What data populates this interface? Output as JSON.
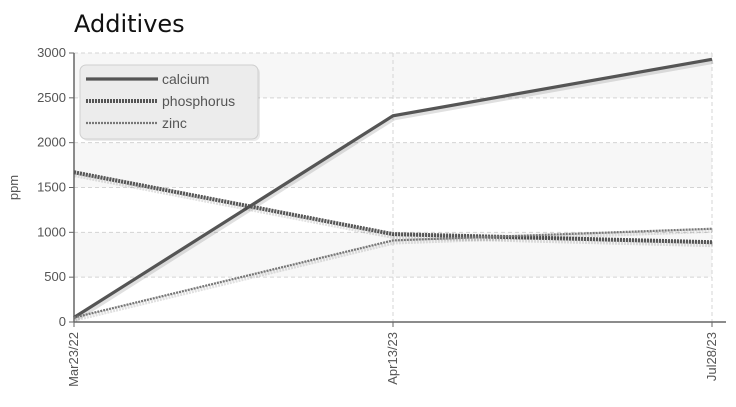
{
  "chart_data": {
    "type": "line",
    "title": "Additives",
    "xlabel": "",
    "ylabel": "ppm",
    "x": [
      "Mar23/22",
      "Apr13/23",
      "Jul28/23"
    ],
    "ylim": [
      0,
      3000
    ],
    "yticks": [
      0,
      500,
      1000,
      1500,
      2000,
      2500,
      3000
    ],
    "grid": true,
    "legend_position": "top-left",
    "series": [
      {
        "name": "calcium",
        "values": [
          50,
          2300,
          2930
        ],
        "color": "#555555",
        "style": "solid"
      },
      {
        "name": "phosphorus",
        "values": [
          1670,
          980,
          890
        ],
        "color": "#555555",
        "style": "dense-dashed"
      },
      {
        "name": "zinc",
        "values": [
          50,
          910,
          1040
        ],
        "color": "#777777",
        "style": "fine-dashed"
      }
    ]
  }
}
